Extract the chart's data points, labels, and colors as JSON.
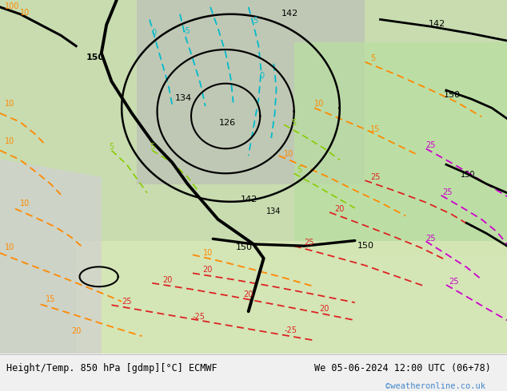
{
  "title_left": "Height/Temp. 850 hPa [gdmp][°C] ECMWF",
  "title_right": "We 05-06-2024 12:00 UTC (06+78)",
  "watermark": "©weatheronline.co.uk",
  "bg_main": "#c8dcb0",
  "bg_gray": "#b8b8b8",
  "bg_light_green": "#b8e0a0",
  "bg_south": "#d8e8b8",
  "footer_bg": "#f0f0f0",
  "black": "#000000",
  "cyan": "#00bbcc",
  "orange": "#ff8800",
  "green_iso": "#88cc00",
  "red_iso": "#dd2222",
  "magenta": "#cc00cc",
  "watermark_color": "#4488cc"
}
